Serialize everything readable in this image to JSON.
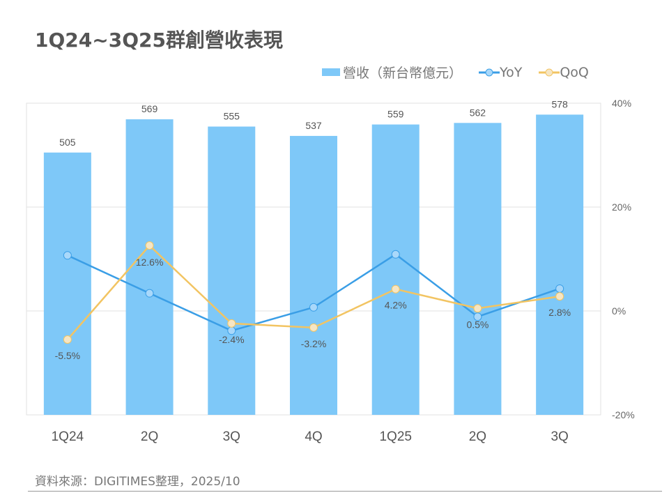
{
  "title": "1Q24~3Q25群創營收表現",
  "source": "資料來源：DIGITIMES整理，2025/10",
  "colors": {
    "bar": "#7ec8f8",
    "yoy": "#3a9ee6",
    "qoq": "#f2c462",
    "yoy_marker": "#a9d8fa",
    "qoq_marker": "#f6e6c4"
  },
  "chart_data": {
    "type": "bar+line",
    "title": "1Q24~3Q25群創營收表現",
    "categories": [
      "1Q24",
      "2Q",
      "3Q",
      "4Q",
      "1Q25",
      "2Q",
      "3Q"
    ],
    "series": [
      {
        "name": "營收（新台幣億元）",
        "type": "bar",
        "axis": "left",
        "values": [
          505,
          569,
          555,
          537,
          559,
          562,
          578
        ],
        "labels": [
          "505",
          "569",
          "555",
          "537",
          "559",
          "562",
          "578"
        ]
      },
      {
        "name": "YoY",
        "type": "line",
        "axis": "right",
        "values": [
          10.7,
          3.4,
          -3.8,
          0.7,
          10.9,
          -1.1,
          4.3
        ]
      },
      {
        "name": "QoQ",
        "type": "line",
        "axis": "right",
        "values": [
          -5.5,
          12.6,
          -2.4,
          -3.2,
          4.2,
          0.5,
          2.8
        ],
        "labels": [
          "-5.5%",
          "12.6%",
          "-2.4%",
          "-3.2%",
          "4.2%",
          "0.5%",
          "2.8%"
        ]
      }
    ],
    "left_ylim": [
      0,
      600
    ],
    "right_ylim": [
      -20,
      40
    ],
    "right_ticks": [
      "40%",
      "20%",
      "0%",
      "-20%"
    ],
    "right_tick_values": [
      40,
      20,
      0,
      -20
    ],
    "legend": [
      "營收（新台幣億元）",
      "YoY",
      "QoQ"
    ],
    "legend_position": "top-right",
    "grid": true
  }
}
